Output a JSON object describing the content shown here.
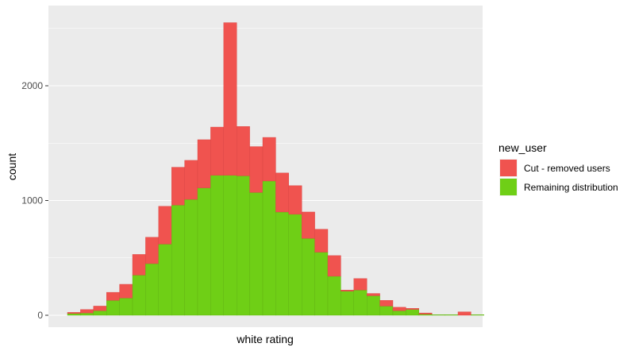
{
  "chart_data": {
    "type": "bar",
    "stacked": true,
    "xlabel": "white rating",
    "ylabel": "count",
    "ylim": [
      0,
      2600
    ],
    "yticks": [
      0,
      1000,
      2000
    ],
    "legend": {
      "title": "new_user",
      "position": "right"
    },
    "grid": true,
    "series": [
      {
        "name": "Cut - removed users",
        "color": "#F0534F",
        "values": [
          10,
          30,
          40,
          70,
          120,
          180,
          230,
          330,
          330,
          340,
          420,
          420,
          1330,
          430,
          400,
          380,
          340,
          250,
          230,
          200,
          180,
          10,
          100,
          20,
          50,
          30,
          10,
          10,
          0,
          0,
          30,
          0
        ]
      },
      {
        "name": "Remaining distribution",
        "color": "#6FCF16",
        "values": [
          15,
          20,
          40,
          130,
          150,
          350,
          450,
          620,
          960,
          1010,
          1110,
          1220,
          1220,
          1215,
          1070,
          1170,
          900,
          880,
          670,
          550,
          340,
          210,
          220,
          170,
          80,
          40,
          50,
          10,
          5,
          5,
          0,
          5
        ]
      }
    ]
  }
}
